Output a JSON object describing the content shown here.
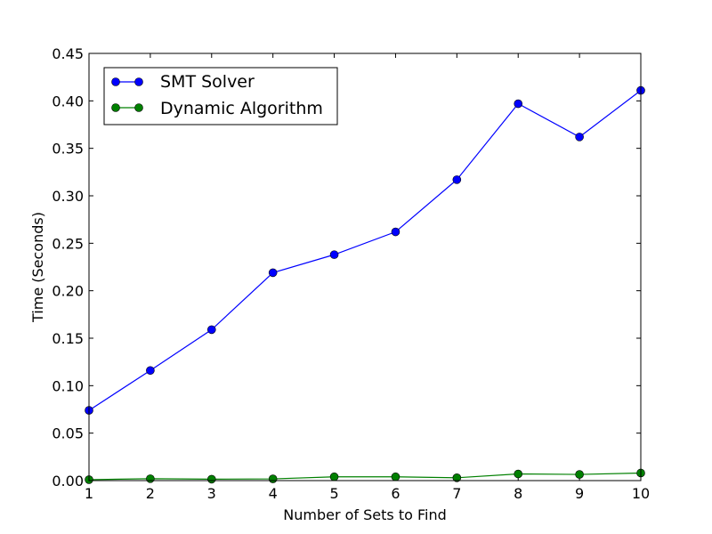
{
  "chart_data": {
    "type": "line",
    "title": "",
    "xlabel": "Number of Sets to Find",
    "ylabel": "Time (Seconds)",
    "x": [
      1,
      2,
      3,
      4,
      5,
      6,
      7,
      8,
      9,
      10
    ],
    "xlim": [
      1,
      10
    ],
    "ylim": [
      0,
      0.45
    ],
    "x_ticks": [
      1,
      2,
      3,
      4,
      5,
      6,
      7,
      8,
      9,
      10
    ],
    "x_tick_labels": [
      "1",
      "2",
      "3",
      "4",
      "5",
      "6",
      "7",
      "8",
      "9",
      "10"
    ],
    "y_ticks": [
      0,
      0.05,
      0.1,
      0.15,
      0.2,
      0.25,
      0.3,
      0.35,
      0.4,
      0.45
    ],
    "y_tick_labels": [
      "0.00",
      "0.05",
      "0.10",
      "0.15",
      "0.20",
      "0.25",
      "0.30",
      "0.35",
      "0.40",
      "0.45"
    ],
    "grid": false,
    "legend_position": "top-left",
    "series": [
      {
        "name": "SMT Solver",
        "color": "#0000ff",
        "marker": "circle",
        "values": [
          0.074,
          0.116,
          0.159,
          0.219,
          0.238,
          0.262,
          0.317,
          0.397,
          0.362,
          0.411
        ]
      },
      {
        "name": "Dynamic Algorithm",
        "color": "#008000",
        "marker": "circle",
        "values": [
          0.001,
          0.002,
          0.0015,
          0.0018,
          0.004,
          0.004,
          0.003,
          0.007,
          0.0065,
          0.008
        ]
      }
    ]
  }
}
